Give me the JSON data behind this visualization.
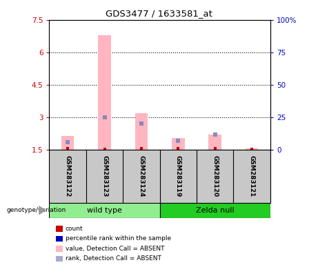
{
  "title": "GDS3477 / 1633581_at",
  "samples": [
    "GSM283122",
    "GSM283123",
    "GSM283124",
    "GSM283119",
    "GSM283120",
    "GSM283121"
  ],
  "group_labels": [
    "wild type",
    "Zelda null"
  ],
  "group_colors": [
    "#90EE90",
    "#22CC22"
  ],
  "ylim_left": [
    1.5,
    7.5
  ],
  "ylim_right": [
    0,
    100
  ],
  "yticks_left": [
    1.5,
    3.0,
    4.5,
    6.0,
    7.5
  ],
  "ytick_labels_left": [
    "1.5",
    "3",
    "4.5",
    "6",
    "7.5"
  ],
  "yticks_right": [
    0,
    25,
    50,
    75,
    100
  ],
  "ytick_labels_right": [
    "0",
    "25",
    "50",
    "75",
    "100%"
  ],
  "left_axis_color": "#CC0000",
  "right_axis_color": "#0000BB",
  "bar_bottom": 1.5,
  "pink_bars": [
    2.15,
    6.8,
    3.2,
    2.05,
    2.2,
    1.55
  ],
  "blue_markers": [
    1.85,
    3.0,
    2.7,
    1.9,
    2.2,
    null
  ],
  "pink_bar_width": 0.35,
  "pink_color": "#FFB6C1",
  "blue_color": "#8888BB",
  "red_color": "#CC0000",
  "red_marker_values": [
    1.55,
    1.52,
    1.55,
    1.55,
    1.55,
    1.52
  ],
  "bg_color": "#C8C8C8",
  "plot_bg": "#FFFFFF",
  "genotype_label": "genotype/variation",
  "legend_items": [
    {
      "label": "count",
      "color": "#CC0000"
    },
    {
      "label": "percentile rank within the sample",
      "color": "#0000BB"
    },
    {
      "label": "value, Detection Call = ABSENT",
      "color": "#FFB6C1"
    },
    {
      "label": "rank, Detection Call = ABSENT",
      "color": "#AAAACC"
    }
  ]
}
